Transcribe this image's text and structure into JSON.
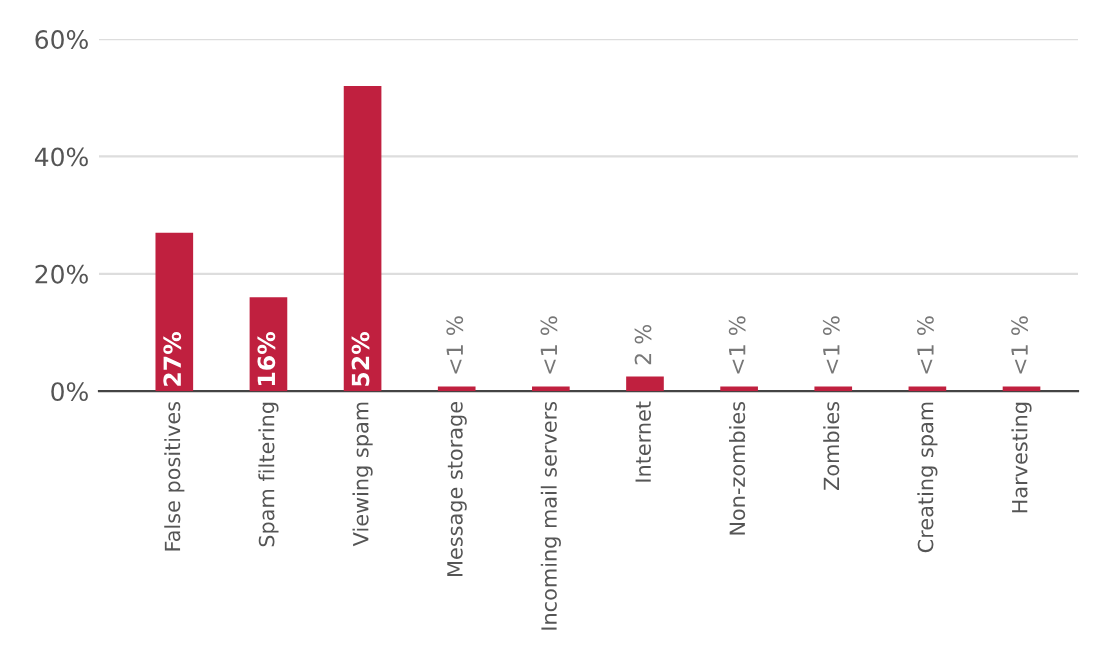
{
  "chart_data": {
    "type": "bar",
    "categories": [
      "False positives",
      "Spam filtering",
      "Viewing spam",
      "Message storage",
      "Incoming mail servers",
      "Internet",
      "Non-zombies",
      "Zombies",
      "Creating spam",
      "Harvesting"
    ],
    "values": [
      27,
      16,
      52,
      0.8,
      0.8,
      2.5,
      0.8,
      0.8,
      0.8,
      0.8
    ],
    "value_labels": [
      "27%",
      "16%",
      "52%",
      "<1 %",
      "<1 %",
      "2 %",
      "<1 %",
      "<1 %",
      "<1 %",
      "<1 %"
    ],
    "color": "#c0203f",
    "ylim": [
      0,
      60
    ],
    "yticks": [
      {
        "value": 0,
        "label": "0%"
      },
      {
        "value": 20,
        "label": "20%"
      },
      {
        "value": 40,
        "label": "40%"
      },
      {
        "value": 60,
        "label": "60%"
      }
    ],
    "grid": "y"
  }
}
